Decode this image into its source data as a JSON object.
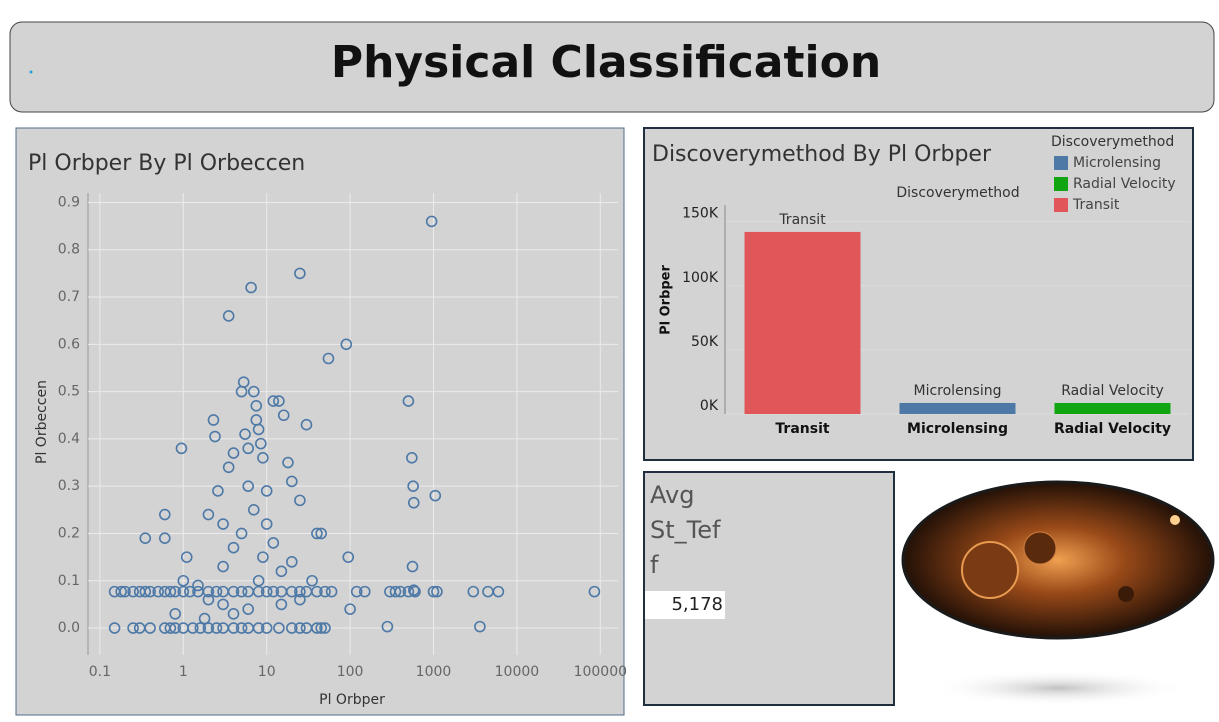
{
  "header": {
    "title": "Physical Classification"
  },
  "chart_data": [
    {
      "type": "scatter",
      "title": "Pl Orbper By Pl Orbeccen",
      "x_label": "Pl Orbper",
      "y_label": "Pl Orbeccen",
      "color": "#4e79a7",
      "x_scale": "log",
      "grid": true,
      "xlim": [
        0.072,
        163000
      ],
      "ylim": [
        -0.057,
        0.92
      ],
      "xticks": [
        0.1,
        1,
        10,
        100,
        1000,
        10000,
        100000
      ],
      "yticks": [
        {
          "value": 0,
          "label": "0.0"
        },
        0.1,
        0.2,
        0.3,
        0.4,
        0.5,
        0.6,
        0.7,
        0.8,
        0.9
      ],
      "x": [
        0.15,
        0.18,
        0.2,
        0.25,
        0.3,
        0.35,
        0.4,
        0.5,
        0.6,
        0.7,
        0.8,
        1,
        1.2,
        1.5,
        2,
        2.5,
        3,
        4,
        5,
        6,
        8,
        10,
        12,
        15,
        20,
        25,
        30,
        40,
        50,
        60,
        120,
        150,
        300,
        350,
        400,
        500,
        600,
        1000,
        1100,
        3000,
        4500,
        6000,
        85000,
        0.15,
        0.25,
        0.3,
        0.4,
        0.6,
        0.7,
        0.8,
        1,
        1.3,
        1.6,
        2,
        2.5,
        3,
        4,
        5,
        6,
        8,
        10,
        14,
        20,
        25,
        30,
        40,
        45,
        50,
        280,
        3600,
        0.35,
        0.6,
        0.6,
        0.95,
        1,
        1.1,
        1.5,
        2,
        2.3,
        2.4,
        2.6,
        3,
        3.5,
        3.5,
        4,
        5,
        5.3,
        5.5,
        6,
        6,
        6.5,
        7,
        7.5,
        7.5,
        8,
        8.5,
        9,
        10,
        12,
        14,
        16,
        18,
        20,
        25,
        25,
        30,
        40,
        45,
        55,
        90,
        95,
        100,
        500,
        550,
        570,
        580,
        560,
        580,
        950,
        1050,
        3,
        4,
        5,
        7,
        8,
        9,
        10,
        12,
        15,
        20,
        2,
        3,
        4,
        6,
        15,
        25,
        35,
        0.8,
        1.8
      ],
      "values": [
        0.077,
        0.077,
        0.077,
        0.077,
        0.077,
        0.077,
        0.077,
        0.077,
        0.077,
        0.077,
        0.077,
        0.077,
        0.077,
        0.077,
        0.077,
        0.077,
        0.077,
        0.077,
        0.077,
        0.077,
        0.077,
        0.077,
        0.077,
        0.077,
        0.077,
        0.077,
        0.077,
        0.077,
        0.077,
        0.077,
        0.077,
        0.077,
        0.077,
        0.077,
        0.077,
        0.077,
        0.077,
        0.077,
        0.077,
        0.077,
        0.077,
        0.077,
        0.077,
        0,
        0,
        0,
        0,
        0,
        0,
        0,
        0,
        0,
        0,
        0,
        0,
        0,
        0,
        0,
        0,
        0,
        0,
        0,
        0,
        0,
        0,
        0,
        0,
        0,
        0.003,
        0.003,
        0.19,
        0.24,
        0.19,
        0.38,
        0.1,
        0.15,
        0.09,
        0.24,
        0.44,
        0.405,
        0.29,
        0.22,
        0.66,
        0.34,
        0.37,
        0.5,
        0.52,
        0.41,
        0.38,
        0.3,
        0.72,
        0.5,
        0.47,
        0.44,
        0.42,
        0.39,
        0.36,
        0.29,
        0.48,
        0.48,
        0.45,
        0.35,
        0.31,
        0.75,
        0.27,
        0.43,
        0.2,
        0.2,
        0.57,
        0.6,
        0.15,
        0.04,
        0.48,
        0.36,
        0.3,
        0.265,
        0.13,
        0.08,
        0.86,
        0.28,
        0.13,
        0.17,
        0.2,
        0.25,
        0.1,
        0.15,
        0.22,
        0.18,
        0.12,
        0.14,
        0.06,
        0.05,
        0.03,
        0.04,
        0.05,
        0.06,
        0.1,
        0.03,
        0.02
      ]
    },
    {
      "type": "bar",
      "title": "Discoverymethod By Pl Orbper",
      "y_label": "Pl Orbper",
      "legend": {
        "title": "Discoverymethod",
        "position": "top-right"
      },
      "categories": [
        "Transit",
        "Microlensing",
        "Radial Velocity"
      ],
      "values": [
        142000,
        8600,
        8600
      ],
      "colors": [
        "#e15759",
        "#4e79a7",
        "#11a611"
      ],
      "legend_order": [
        1,
        2,
        0
      ],
      "ylim": [
        0,
        163000
      ],
      "yticks": [
        {
          "value": 0,
          "label": "0K"
        },
        {
          "value": 50000,
          "label": "50K"
        },
        {
          "value": 100000,
          "label": "100K"
        },
        {
          "value": 150000,
          "label": "150K"
        }
      ],
      "grid": true
    }
  ],
  "kpi": {
    "label": "Avg St_Teff",
    "value": "5,178"
  }
}
